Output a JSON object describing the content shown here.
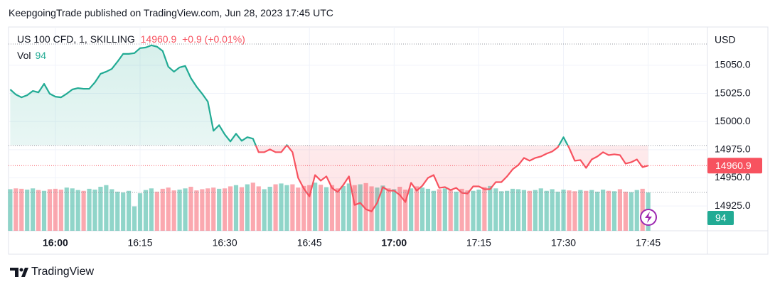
{
  "header": "KeepgoingTrade published on TradingView.com, Jun 28, 2023 17:45 UTC",
  "footer": {
    "brand": "TradingView"
  },
  "chart_data": {
    "type": "baseline",
    "title": "US 100 CFD, 1, SKILLING",
    "change": "+0.9 (+0.01%)",
    "currency": "USD",
    "baseline": 14978.8,
    "up_color": "#22ab94",
    "down_color": "#f7525f",
    "grid": true,
    "x": [
      952,
      953,
      954,
      955,
      956,
      957,
      958,
      959,
      960,
      961,
      962,
      963,
      964,
      965,
      966,
      967,
      968,
      969,
      970,
      971,
      972,
      973,
      974,
      975,
      976,
      977,
      978,
      979,
      980,
      981,
      982,
      983,
      984,
      985,
      986,
      987,
      988,
      989,
      990,
      991,
      992,
      993,
      994,
      995,
      996,
      997,
      998,
      999,
      1000,
      1001,
      1002,
      1003,
      1004,
      1005,
      1006,
      1007,
      1008,
      1009,
      1010,
      1011,
      1012,
      1013,
      1014,
      1015,
      1016,
      1017,
      1018,
      1019,
      1020,
      1021,
      1022,
      1023,
      1024,
      1025,
      1026,
      1027,
      1028,
      1029,
      1030,
      1031,
      1032,
      1033,
      1034,
      1035,
      1036,
      1037,
      1038,
      1039,
      1040,
      1041,
      1042,
      1043,
      1044,
      1045,
      1046,
      1047,
      1048,
      1049,
      1050,
      1051,
      1052,
      1053,
      1054,
      1055,
      1056,
      1057,
      1058,
      1059,
      1060,
      1061,
      1062,
      1063,
      1064,
      1065
    ],
    "series": [
      {
        "name": "US 100 CFD, 1, SKILLING",
        "values": [
          15028.5,
          15024.0,
          15021.5,
          15023.4,
          15027.2,
          15025.9,
          15033.5,
          15024.7,
          15022.1,
          15021.5,
          15024.7,
          15028.5,
          15029.7,
          15029.1,
          15029.1,
          15034.8,
          15042.4,
          15044.3,
          15046.8,
          15053.2,
          15060.1,
          15060.1,
          15060.8,
          15065.2,
          15065.8,
          15067.7,
          15066.5,
          15062.7,
          15048.7,
          15044.3,
          15048.1,
          15049.4,
          15038.6,
          15031.0,
          15024.7,
          15017.7,
          14991.8,
          14996.8,
          14988.6,
          14982.3,
          14989.2,
          14982.9,
          14986.1,
          14984.8,
          14972.8,
          14972.8,
          14975.3,
          14972.8,
          14972.8,
          14979.1,
          14972.8,
          14950.0,
          14940.5,
          14933.5,
          14952.5,
          14947.5,
          14951.3,
          14941.1,
          14937.3,
          14943.7,
          14951.3,
          14925.9,
          14927.8,
          14922.1,
          14920.2,
          14927.8,
          14941.8,
          14938.6,
          14938.6,
          14934.8,
          14928.5,
          14945.6,
          14938.6,
          14943.0,
          14950.0,
          14952.5,
          14941.1,
          14941.8,
          14939.2,
          14941.1,
          14936.7,
          14936.1,
          14942.4,
          14942.4,
          14939.9,
          14939.9,
          14946.2,
          14946.2,
          14951.3,
          14957.6,
          14961.4,
          14967.7,
          14965.2,
          14967.7,
          14969.0,
          14971.5,
          14973.4,
          14977.2,
          14986.1,
          14976.6,
          14965.2,
          14965.8,
          14958.8,
          14966.4,
          14969.0,
          14972.8,
          14970.2,
          14970.9,
          14970.2,
          14962.6,
          14963.9,
          14966.4,
          14959.5,
          14960.9
        ]
      },
      {
        "name": "Vol",
        "axis": "y2",
        "values": [
          102,
          104,
          103,
          101,
          104,
          100,
          98,
          102,
          103,
          101,
          106,
          104,
          100,
          98,
          103,
          101,
          108,
          112,
          102,
          96,
          94,
          98,
          60,
          92,
          100,
          104,
          96,
          103,
          106,
          99,
          101,
          104,
          108,
          99,
          102,
          104,
          106,
          103,
          104,
          109,
          112,
          107,
          114,
          118,
          109,
          102,
          108,
          114,
          116,
          112,
          114,
          106,
          110,
          112,
          118,
          113,
          107,
          112,
          104,
          110,
          116,
          112,
          114,
          117,
          109,
          106,
          111,
          104,
          102,
          108,
          101,
          104,
          109,
          106,
          103,
          98,
          102,
          104,
          100,
          96,
          103,
          99,
          98,
          101,
          107,
          110,
          104,
          97,
          98,
          103,
          102,
          100,
          98,
          100,
          104,
          98,
          102,
          96,
          101,
          99,
          97,
          100,
          98,
          100,
          96,
          101,
          98,
          97,
          102,
          96,
          95,
          100,
          103,
          94
        ]
      }
    ],
    "xlim": [
      951.7,
      1075.5
    ],
    "xticks": [
      {
        "value": 960,
        "label": "16:00"
      },
      {
        "value": 975,
        "label": "16:15"
      },
      {
        "value": 990,
        "label": "16:30"
      },
      {
        "value": 1005,
        "label": "16:45"
      },
      {
        "value": 1020,
        "label": "17:00"
      },
      {
        "value": 1035,
        "label": "17:15"
      },
      {
        "value": 1050,
        "label": "17:30"
      },
      {
        "value": 1065,
        "label": "17:45"
      }
    ],
    "ylim": [
      14903,
      15084
    ],
    "yticks": [
      {
        "value": 14925,
        "label": "14925.0"
      },
      {
        "value": 14950,
        "label": "14950.0"
      },
      {
        "value": 14975,
        "label": "14975.0"
      },
      {
        "value": 15000,
        "label": "15000.0"
      },
      {
        "value": 15025,
        "label": "15025.0"
      },
      {
        "value": 15050,
        "label": "15050.0"
      }
    ],
    "y2lim": [
      0,
      500
    ]
  }
}
